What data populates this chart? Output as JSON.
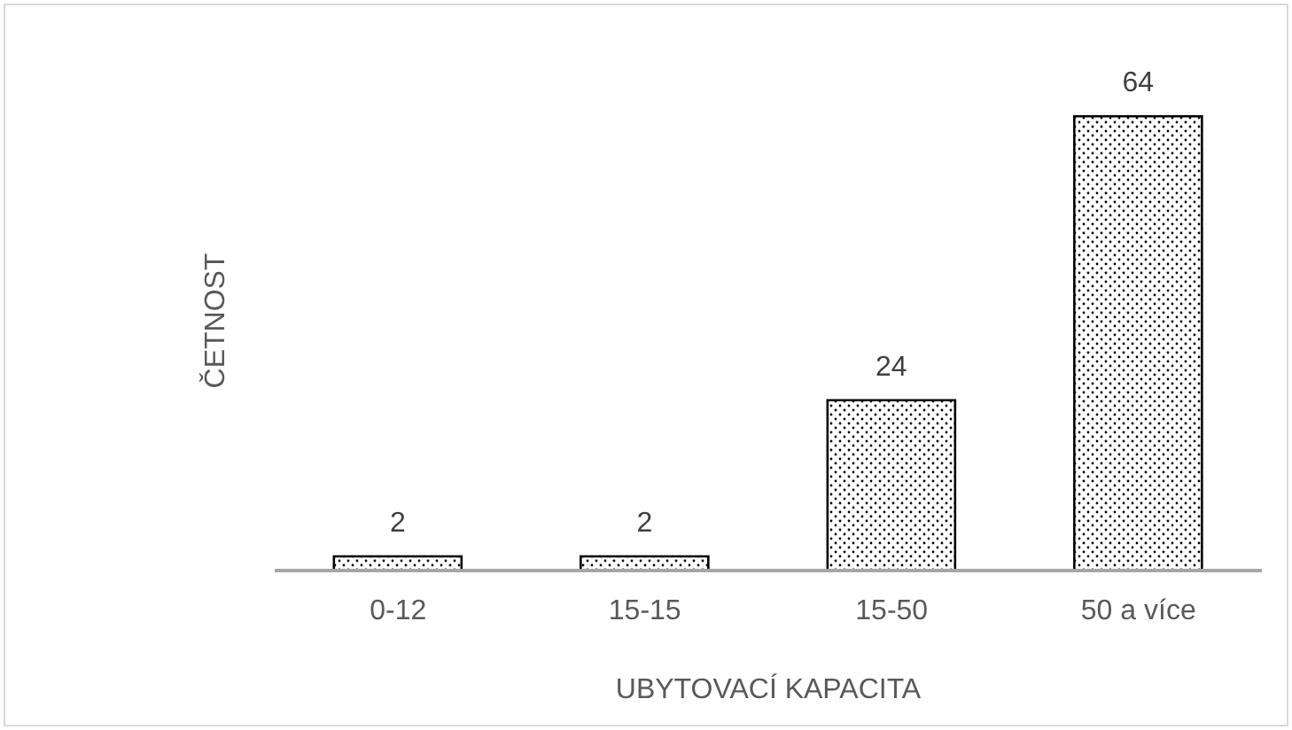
{
  "chart_data": {
    "type": "bar",
    "xlabel": "UBYTOVACÍ KAPACITA",
    "ylabel": "ČETNOST",
    "categories": [
      "0-12",
      "15-15",
      "15-50",
      "50 a více"
    ],
    "values": [
      2,
      2,
      24,
      64
    ],
    "color": "#000000",
    "data_labels": true,
    "tick_labels": "x"
  }
}
